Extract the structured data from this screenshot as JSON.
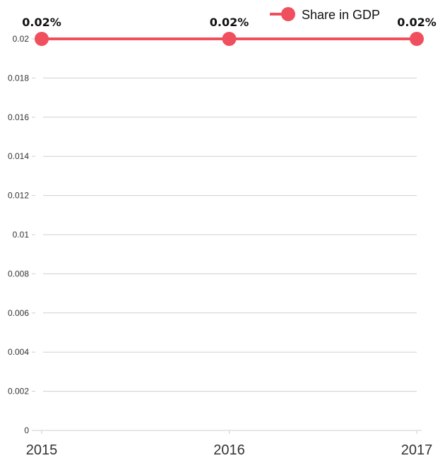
{
  "chart_data": {
    "type": "line",
    "title": "",
    "xlabel": "",
    "ylabel": "",
    "x": [
      "2015",
      "2016",
      "2017"
    ],
    "ylim": [
      0,
      0.02
    ],
    "yticks": [
      "0",
      "0.002",
      "0.004",
      "0.006",
      "0.008",
      "0.01",
      "0.012",
      "0.014",
      "0.016",
      "0.018",
      "0.02"
    ],
    "grid": true,
    "legend_position": "top-right",
    "series": [
      {
        "name": "Share in GDP",
        "values": [
          0.02,
          0.02,
          0.02
        ],
        "labels": [
          "0.02%",
          "0.02%",
          "0.02%"
        ],
        "color": "#f0505d"
      }
    ]
  }
}
